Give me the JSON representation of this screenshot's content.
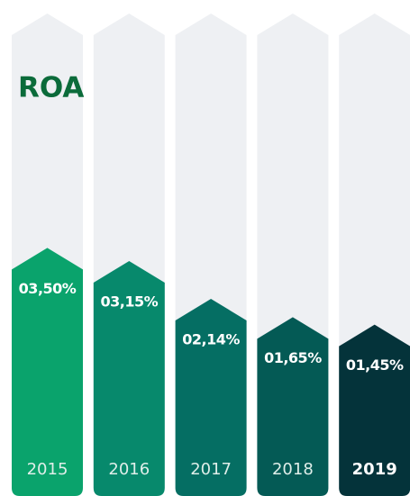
{
  "chart_data": {
    "type": "bar",
    "title": "ROA",
    "categories": [
      "2015",
      "2016",
      "2017",
      "2018",
      "2019"
    ],
    "values": [
      3.5,
      3.15,
      2.14,
      1.65,
      1.45
    ],
    "value_labels": [
      "03,50%",
      "03,15%",
      "02,14%",
      "01,65%",
      "01,45%"
    ],
    "colors": [
      "#0aa36c",
      "#07896c",
      "#056e63",
      "#045a55",
      "#04333a"
    ],
    "background_color": "#eef0f3"
  }
}
